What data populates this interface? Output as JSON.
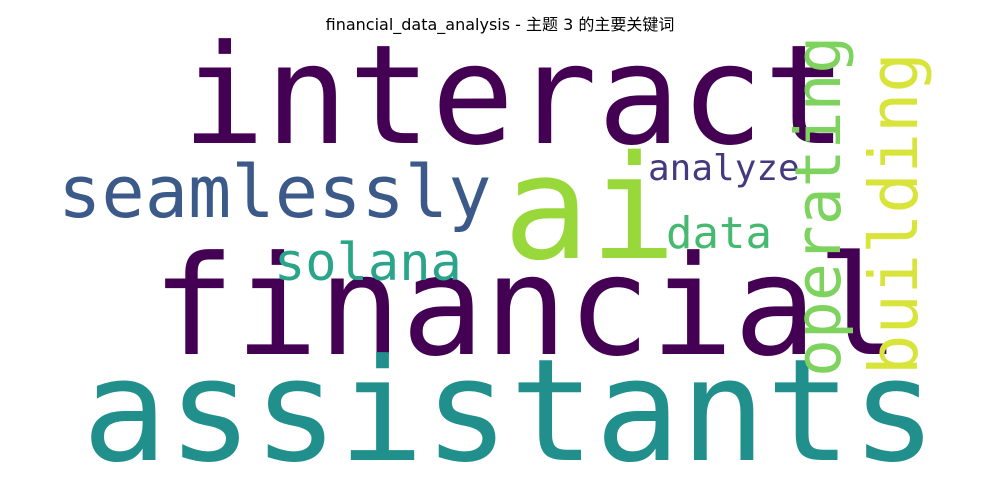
{
  "title": "financial_data_analysis - 主题 3 的主要关键词",
  "words": [
    {
      "text": "interact",
      "color": "#440154",
      "rotated": false
    },
    {
      "text": "financial",
      "color": "#440154",
      "rotated": false
    },
    {
      "text": "assistants",
      "color": "#21908d",
      "rotated": false
    },
    {
      "text": "seamlessly",
      "color": "#3b5a8a",
      "rotated": false
    },
    {
      "text": "ai",
      "color": "#99d83a",
      "rotated": false
    },
    {
      "text": "solana",
      "color": "#2ba58a",
      "rotated": false
    },
    {
      "text": "analyze",
      "color": "#453a80",
      "rotated": false
    },
    {
      "text": "data",
      "color": "#45b970",
      "rotated": false
    },
    {
      "text": "operating",
      "color": "#7ed25e",
      "rotated": true
    },
    {
      "text": "building",
      "color": "#d8e43a",
      "rotated": true
    }
  ]
}
